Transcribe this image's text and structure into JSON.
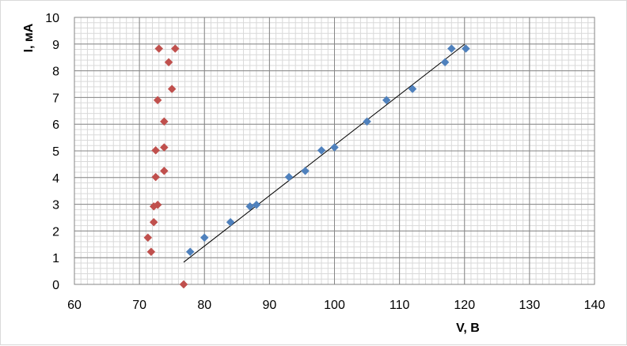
{
  "chart_data": {
    "type": "scatter",
    "title": "",
    "xlabel": "V, B",
    "ylabel": "I, мА",
    "xlim": [
      60,
      140
    ],
    "ylim": [
      0,
      10
    ],
    "x_ticks": [
      "60",
      "70",
      "80",
      "90",
      "100",
      "110",
      "120",
      "130",
      "140"
    ],
    "y_ticks": [
      "0",
      "1",
      "2",
      "3",
      "4",
      "5",
      "6",
      "7",
      "8",
      "9",
      "10"
    ],
    "x_major_step": 10,
    "x_minor_step": 1,
    "y_major_step": 1,
    "y_minor_step": 0.2,
    "grid": true,
    "legend": "none",
    "series": [
      {
        "marker": "diamond",
        "color": "#4f81bd",
        "points": [
          [
            77.8,
            1.22
          ],
          [
            80.0,
            1.75
          ],
          [
            84.0,
            2.33
          ],
          [
            87.0,
            2.92
          ],
          [
            88.0,
            2.98
          ],
          [
            93.0,
            4.02
          ],
          [
            95.5,
            4.25
          ],
          [
            98.0,
            5.02
          ],
          [
            100.0,
            5.13
          ],
          [
            105.0,
            6.1
          ],
          [
            108.0,
            6.9
          ],
          [
            112.0,
            7.32
          ],
          [
            117.0,
            8.32
          ],
          [
            118.0,
            8.83
          ],
          [
            120.2,
            8.83
          ]
        ]
      },
      {
        "marker": "diamond",
        "color": "#c0504d",
        "points": [
          [
            73.0,
            8.83
          ],
          [
            75.5,
            8.83
          ],
          [
            74.5,
            8.32
          ],
          [
            75.0,
            7.32
          ],
          [
            72.8,
            6.9
          ],
          [
            73.8,
            6.1
          ],
          [
            73.8,
            5.13
          ],
          [
            72.5,
            5.02
          ],
          [
            73.8,
            4.25
          ],
          [
            72.5,
            4.02
          ],
          [
            72.8,
            2.98
          ],
          [
            72.2,
            2.92
          ],
          [
            72.2,
            2.33
          ],
          [
            71.3,
            1.75
          ],
          [
            71.8,
            1.22
          ],
          [
            76.8,
            0.0
          ]
        ]
      }
    ],
    "trendline": {
      "color": "#000000",
      "x": [
        76.8,
        120.0
      ],
      "y": [
        0.83,
        8.99
      ]
    }
  }
}
